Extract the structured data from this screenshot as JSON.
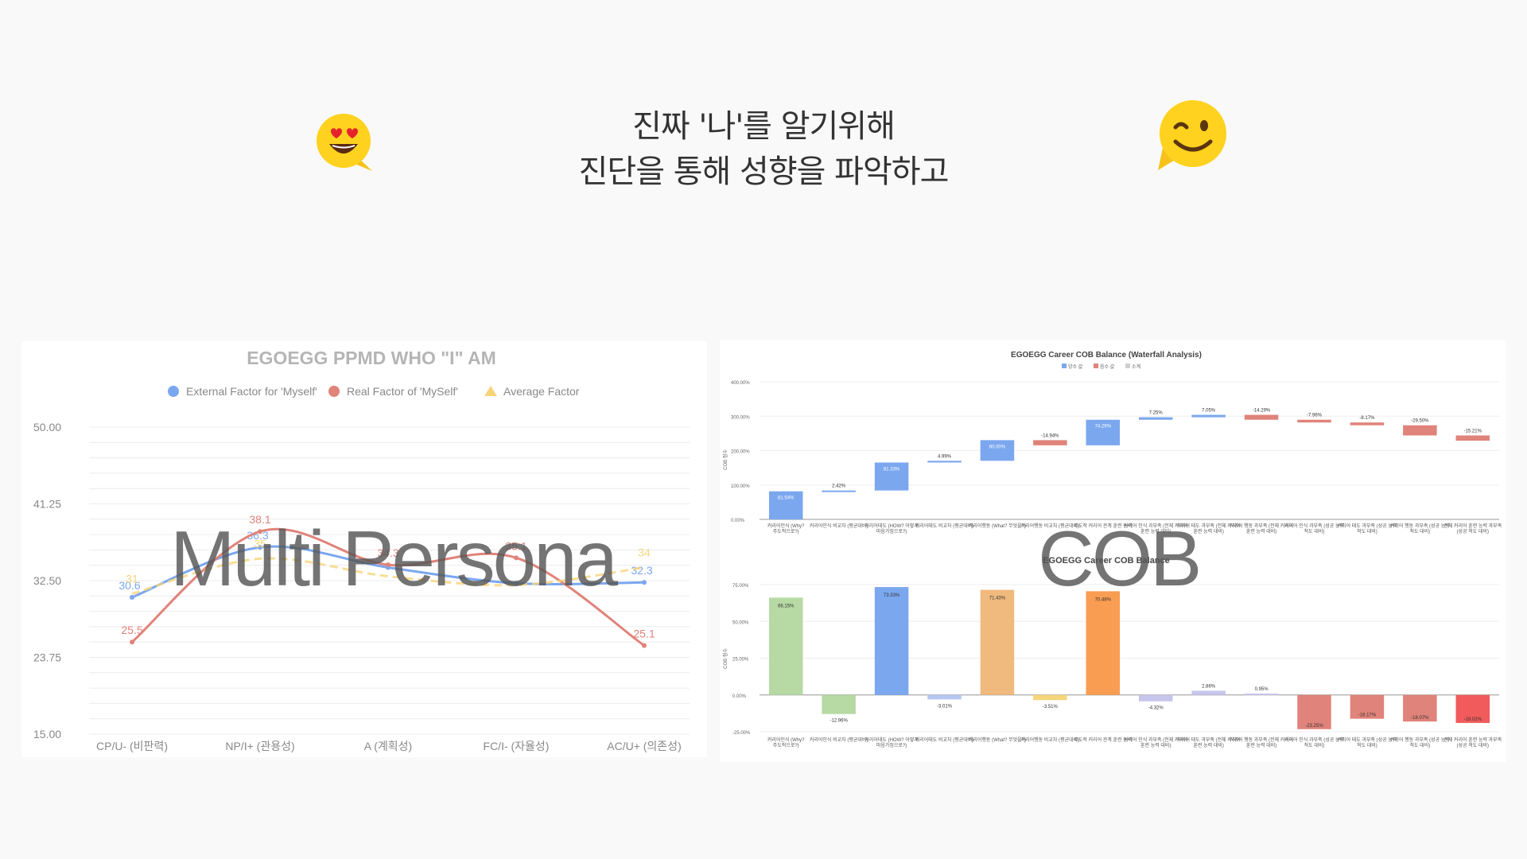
{
  "headline": {
    "line1": "진짜 '나'를 알기위해",
    "line2": "진단을 통해 성향을 파악하고"
  },
  "overlay": {
    "left": "Multi Persona",
    "right": "COB"
  },
  "icons": {
    "left": "heart-eyes-emoji-icon",
    "right": "wink-emoji-icon"
  },
  "colors": {
    "blue": "#7ba7ef",
    "red": "#e0837a",
    "yellow": "#f6d57a",
    "green": "#b7d9a4",
    "orange": "#f0b97d",
    "lavender": "#c6c5ec"
  },
  "chart_data": [
    {
      "type": "line",
      "title": "EGOEGG PPMD WHO \"I\" AM",
      "legend_position": "top",
      "grid": true,
      "categories": [
        "CP/U- (비판력)",
        "NP/I+ (관용성)",
        "A (계획성)",
        "FC/I- (자율성)",
        "AC/U+ (의존성)"
      ],
      "y_ticks": [
        "50.00",
        "41.25",
        "32.50",
        "23.75",
        "15.00"
      ],
      "ylim": [
        15,
        50
      ],
      "series": [
        {
          "name": "External Factor for 'Myself'",
          "values": [
            30.6,
            36.3,
            34.0,
            32.2,
            32.3
          ],
          "labels": [
            "30.6",
            "36.3",
            "",
            "",
            "32.3"
          ],
          "color": "#7ba7ef"
        },
        {
          "name": "Real Factor of 'MySelf'",
          "values": [
            25.5,
            38.1,
            34.3,
            35.1,
            25.1
          ],
          "labels": [
            "25.5",
            "38.1",
            "34.3",
            "35.1",
            "25.1"
          ],
          "color": "#e0837a"
        },
        {
          "name": "Average Factor",
          "values": [
            31.0,
            35.0,
            33.0,
            32.0,
            34.0
          ],
          "labels": [
            "31",
            "35",
            "",
            "",
            "34"
          ],
          "color": "#f6d57a"
        }
      ]
    },
    {
      "type": "bar",
      "subtype": "waterfall",
      "title": "EGOEGG Career COB Balance (Waterfall Analysis)",
      "legend": [
        "양수 값",
        "음수 값",
        "소계"
      ],
      "legend_position": "top",
      "ylabel": "COB 점수",
      "y_ticks": [
        "400.00%",
        "300.00%",
        "200.00%",
        "100.00%",
        "0.00%"
      ],
      "ylim": [
        0,
        400
      ],
      "categories": [
        "커리어인식 (Why? 주도적으로?)",
        "커리어인식 비교차 (평균대비)",
        "커리어태도 (HOW? 어떻게 마음가짐으로?)",
        "커리어태도 비교차 (평균대비)",
        "커리어행동 (What? 무엇을?)",
        "커리어행동 비교차 (평균대비)",
        "주도적 커리어 관계 훈련 능력",
        "커리어 인식 과부족 (전체 커리어 훈련 능력 대비)",
        "커리어 태도 과부족 (전체 커리어 훈련 능력 대비)",
        "커리어 행동 과부족 (전체 커리어 훈련 능력 대비)",
        "커리어 인식 과부족 (성공 능력 척도 대비)",
        "커리어 태도 과부족 (성공 능력 척도 대비)",
        "커리어 행동 과부족 (성공 능력 척도 대비)",
        "전체 커리어 훈련 능력 과부족 (성공 척도 대비)"
      ],
      "values": [
        81.54,
        2.42,
        81.33,
        4.99,
        60.0,
        -14.94,
        74.29,
        7.25,
        7.05,
        -14.29,
        -7.96,
        -8.17,
        -29.5,
        -15.21
      ],
      "value_labels": [
        "81.54%",
        "2.42%",
        "81.33%",
        "4.99%",
        "60.00%",
        "-14.94%",
        "74.29%",
        "7.25%",
        "7.05%",
        "-14.29%",
        "-7.96%",
        "-8.17%",
        "-29.50%",
        "-15.21%"
      ]
    },
    {
      "type": "bar",
      "title": "EGOEGG Career COB Balance",
      "ylabel": "COB 점수",
      "y_ticks": [
        "75.00%",
        "50.00%",
        "25.00%",
        "0.00%",
        "-25.00%"
      ],
      "ylim": [
        -25,
        75
      ],
      "categories": [
        "커리어인식 (Why? 주도적으로?)",
        "커리어인식 비교차 (평균대비)",
        "커리어태도 (HOW? 어떻게 마음가짐으로?)",
        "커리어태도 비교차 (평균대비)",
        "커리어행동 (What? 무엇을?)",
        "커리어행동 비교차 (평균대비)",
        "주도적 커리어 관계 훈련 능력",
        "커리어 인식 과부족 (전체 커리어 훈련 능력 대비)",
        "커리어 태도 과부족 (전체 커리어 훈련 능력 대비)",
        "커리어 행동 과부족 (전체 커리어 훈련 능력 대비)",
        "커리어 인식 과부족 (성공 능력 척도 대비)",
        "커리어 태도 과부족 (성공 능력 척도 대비)",
        "커리어 행동 과부족 (성공 능력 척도 대비)",
        "전체 커리어 훈련 능력 과부족 (성공 척도 대비)"
      ],
      "values": [
        66.15,
        -12.96,
        73.33,
        -3.01,
        71.43,
        -3.51,
        70.48,
        -4.32,
        2.86,
        0.95,
        -23.25,
        -16.17,
        -18.07,
        -19.02
      ],
      "value_labels": [
        "66.15%",
        "-12.96%",
        "73.33%",
        "-3.01%",
        "71.43%",
        "-3.51%",
        "70.48%",
        "-4.32%",
        "2.86%",
        "0.95%",
        "-23.25%",
        "-16.17%",
        "-18.07%",
        "-19.02%"
      ],
      "bar_colors": [
        "#b7d9a4",
        "#b7d9a4",
        "#7ba7ef",
        "#b7c7f2",
        "#f0b97d",
        "#f6d57a",
        "#f99d52",
        "#c6c5ec",
        "#c6c5ec",
        "#c6c5ec",
        "#e0837a",
        "#e0837a",
        "#e0837a",
        "#f15b5b"
      ]
    }
  ]
}
